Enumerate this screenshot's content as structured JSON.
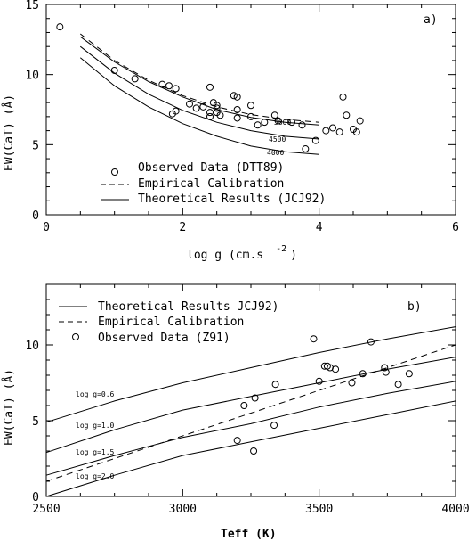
{
  "chart_data": [
    {
      "type": "line",
      "panel_label": "a)",
      "xlabel": "log g (cm.s",
      "xlabel_exp": "-2",
      "xlabel_close": ")",
      "ylabel": "EW(CaT) (Å)",
      "xlim": [
        0,
        6
      ],
      "ylim": [
        0,
        15
      ],
      "xticks": [
        0,
        2,
        4,
        6
      ],
      "yticks": [
        0,
        5,
        10,
        15
      ],
      "legend": [
        {
          "label": "Observed Data (DTT89)",
          "style": "circle"
        },
        {
          "label": "Empirical Calibration",
          "style": "dashed"
        },
        {
          "label": "Theoretical Results (JCJ92)",
          "style": "solid"
        }
      ],
      "series": [
        {
          "name": "5000",
          "style": "solid",
          "x": [
            0.5,
            1.0,
            1.5,
            2.0,
            2.5,
            3.0,
            3.5,
            4.0
          ],
          "y": [
            12.7,
            10.9,
            9.5,
            8.4,
            7.5,
            6.95,
            6.6,
            6.4
          ]
        },
        {
          "name": "4500",
          "style": "solid",
          "x": [
            0.5,
            1.0,
            1.5,
            2.0,
            2.5,
            3.0,
            3.5,
            4.0
          ],
          "y": [
            12.0,
            10.1,
            8.6,
            7.45,
            6.6,
            6.0,
            5.6,
            5.4
          ]
        },
        {
          "name": "4000",
          "style": "solid",
          "x": [
            0.5,
            1.0,
            1.5,
            2.0,
            2.5,
            3.0,
            3.5,
            4.0
          ],
          "y": [
            11.2,
            9.2,
            7.7,
            6.5,
            5.6,
            4.9,
            4.5,
            4.3
          ]
        },
        {
          "name": "",
          "style": "dashed",
          "x": [
            0.5,
            1.0,
            1.5,
            2.0,
            2.5,
            3.0,
            3.5,
            4.0
          ],
          "y": [
            12.9,
            11.0,
            9.6,
            8.5,
            7.7,
            7.15,
            6.8,
            6.6
          ]
        }
      ],
      "points": {
        "x": [
          0.2,
          1.0,
          1.3,
          1.7,
          1.8,
          1.9,
          1.9,
          1.85,
          2.1,
          2.2,
          2.3,
          2.4,
          2.4,
          2.4,
          2.45,
          2.5,
          2.5,
          2.5,
          2.55,
          2.75,
          2.8,
          2.8,
          2.8,
          3.0,
          3.0,
          3.1,
          3.2,
          3.35,
          3.4,
          3.6,
          3.75,
          3.8,
          3.95,
          4.1,
          4.2,
          4.3,
          4.35,
          4.4,
          4.5,
          4.55,
          4.6
        ],
        "y": [
          13.4,
          10.3,
          9.7,
          9.3,
          9.2,
          9.0,
          7.4,
          7.2,
          7.9,
          7.6,
          7.7,
          7.3,
          7.0,
          9.1,
          8.0,
          7.8,
          7.6,
          7.3,
          7.1,
          8.5,
          8.4,
          7.5,
          6.9,
          7.8,
          7.0,
          6.4,
          6.6,
          7.1,
          6.7,
          6.6,
          6.4,
          4.7,
          5.3,
          6.0,
          6.2,
          5.9,
          8.4,
          7.1,
          6.1,
          5.9,
          6.7
        ]
      }
    },
    {
      "type": "line",
      "panel_label": "b)",
      "xlabel": "Teff (K)",
      "ylabel": "EW(CaT) (Å)",
      "xlim": [
        2500,
        4000
      ],
      "ylim": [
        0,
        14
      ],
      "xticks": [
        2500,
        3000,
        3500,
        4000
      ],
      "yticks": [
        0,
        5,
        10
      ],
      "legend": [
        {
          "label": "Theoretical Results JCJ92)",
          "style": "solid"
        },
        {
          "label": "Empirical Calibration",
          "style": "dashed"
        },
        {
          "label": "Observed Data (Z91)",
          "style": "circle"
        }
      ],
      "series": [
        {
          "name": "log g=0.6",
          "style": "solid",
          "x": [
            2500,
            2750,
            3000,
            3250,
            3500,
            3750,
            4000
          ],
          "y": [
            4.9,
            6.3,
            7.5,
            8.5,
            9.5,
            10.4,
            11.2
          ]
        },
        {
          "name": "log g=1.0",
          "style": "solid",
          "x": [
            2500,
            2750,
            3000,
            3250,
            3500,
            3750,
            4000
          ],
          "y": [
            2.9,
            4.4,
            5.7,
            6.6,
            7.5,
            8.4,
            9.2
          ]
        },
        {
          "name": "log g=1.5",
          "style": "solid",
          "x": [
            2500,
            2750,
            3000,
            3250,
            3500,
            3750,
            4000
          ],
          "y": [
            1.4,
            2.7,
            3.9,
            4.8,
            5.9,
            6.8,
            7.6
          ]
        },
        {
          "name": "log g=2.0",
          "style": "solid",
          "x": [
            2500,
            2750,
            3000,
            3250,
            3500,
            3750,
            4000
          ],
          "y": [
            0.0,
            1.4,
            2.7,
            3.6,
            4.5,
            5.4,
            6.3
          ]
        },
        {
          "name": "",
          "style": "dashed",
          "x": [
            2500,
            2750,
            3000,
            3250,
            3500,
            3750,
            4000
          ],
          "y": [
            1.0,
            2.5,
            4.0,
            5.5,
            7.0,
            8.5,
            10.0
          ]
        }
      ],
      "points": {
        "x": [
          3200,
          3225,
          3260,
          3265,
          3335,
          3340,
          3480,
          3500,
          3520,
          3530,
          3540,
          3560,
          3620,
          3660,
          3690,
          3740,
          3745,
          3790,
          3830
        ],
        "y": [
          3.7,
          6.0,
          3.0,
          6.5,
          4.7,
          7.4,
          10.4,
          7.6,
          8.6,
          8.6,
          8.5,
          8.4,
          7.5,
          8.1,
          10.2,
          8.5,
          8.2,
          7.4,
          8.1
        ]
      }
    }
  ]
}
